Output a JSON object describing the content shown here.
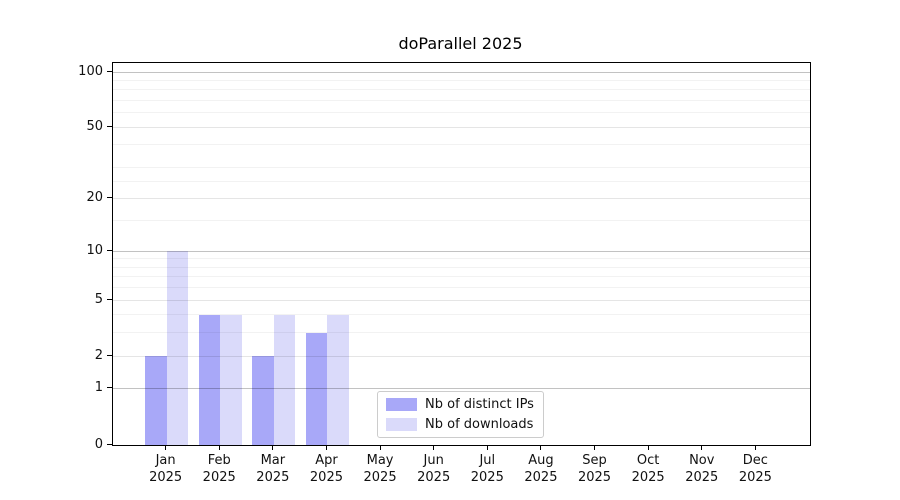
{
  "chart_data": {
    "type": "bar",
    "title": "doParallel 2025",
    "x_axis": {
      "months": [
        "Jan",
        "Feb",
        "Mar",
        "Apr",
        "May",
        "Jun",
        "Jul",
        "Aug",
        "Sep",
        "Oct",
        "Nov",
        "Dec"
      ],
      "year": "2025"
    },
    "y_axis": {
      "scale": "log1p",
      "max": 112,
      "ticks": [
        0,
        1,
        2,
        5,
        10,
        20,
        50,
        100
      ],
      "major_grid": [
        1,
        10,
        100
      ],
      "mid_grid": [
        2,
        5,
        20,
        50
      ],
      "minor_grid": [
        3,
        4,
        6,
        7,
        8,
        9,
        15,
        25,
        30,
        40,
        60,
        70,
        80,
        90
      ]
    },
    "series": [
      {
        "name": "Nb of distinct IPs",
        "color": "#a8a8f8",
        "values": [
          2,
          4,
          2,
          3,
          0,
          0,
          0,
          0,
          0,
          0,
          0,
          0
        ]
      },
      {
        "name": "Nb of downloads",
        "color": "#dadafa",
        "values": [
          10,
          4,
          4,
          4,
          0,
          0,
          0,
          0,
          0,
          0,
          0,
          0
        ]
      }
    ],
    "legend_position": "lower center"
  }
}
